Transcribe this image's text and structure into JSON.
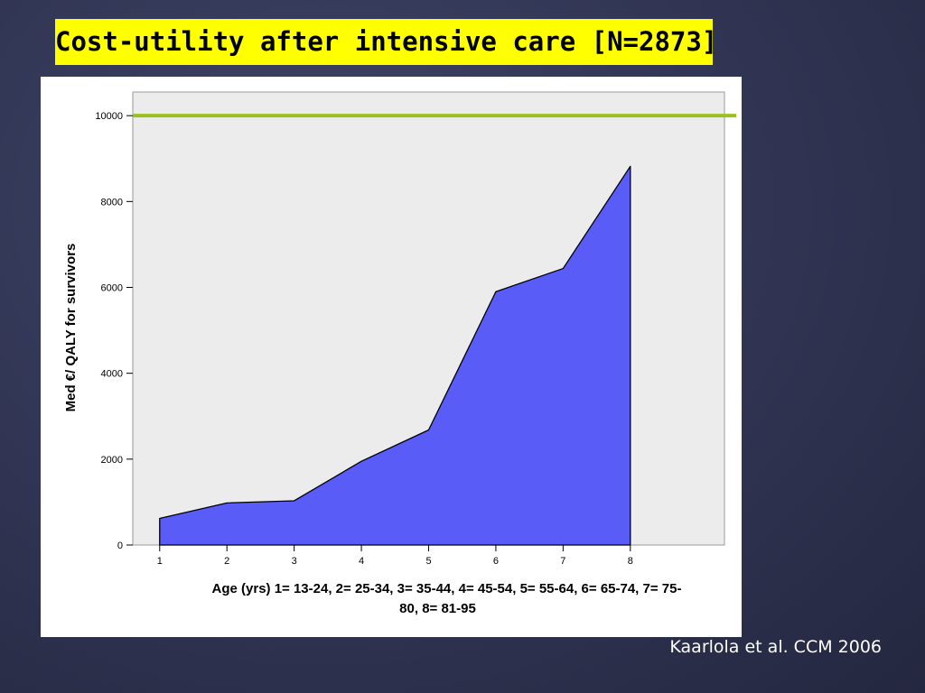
{
  "slide": {
    "title": "Cost-utility after intensive care [N=2873]",
    "citation": "Kaarlola et al. CCM 2006"
  },
  "colors": {
    "background": "#303452",
    "title_bg": "#ffff00",
    "area_fill": "#5a5cf8",
    "plot_bg": "#ececec",
    "threshold_line": "#9ac21e"
  },
  "chart_data": {
    "type": "area",
    "title": "",
    "xlabel_lines": [
      "Age (yrs) 1= 13-24, 2= 25-34, 3= 35-44, 4= 45-54, 5= 55-64, 6= 65-74, 7= 75-",
      "80, 8= 81-95"
    ],
    "ylabel": "Med €/ QALY for survivors",
    "x": [
      1,
      2,
      3,
      4,
      5,
      6,
      7,
      8
    ],
    "y": [
      620,
      980,
      1030,
      1950,
      2680,
      5900,
      6440,
      8820
    ],
    "xticks": [
      1,
      2,
      3,
      4,
      5,
      6,
      7,
      8
    ],
    "yticks": [
      0,
      2000,
      4000,
      6000,
      8000,
      10000
    ],
    "xlim": [
      0.6,
      9.4
    ],
    "ylim": [
      0,
      10550
    ],
    "reference_line": {
      "y": 10000,
      "color": "#9ac21e"
    },
    "grid": false
  }
}
